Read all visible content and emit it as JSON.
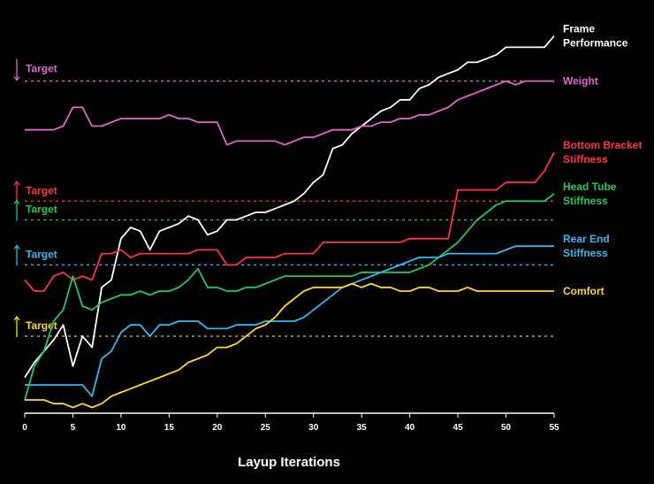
{
  "chart_data": {
    "type": "line",
    "title": "",
    "xlabel": "Layup Iterations",
    "ylabel": "",
    "xlim": [
      0,
      55
    ],
    "ylim": [
      0,
      100
    ],
    "x_ticks": [
      0,
      5,
      10,
      15,
      20,
      25,
      30,
      35,
      40,
      45,
      50,
      55
    ],
    "grid": false,
    "legend": "right (labels at line ends)",
    "series": [
      {
        "name": "Frame Performance",
        "label_lines": [
          "Frame",
          "Performance"
        ],
        "color": "#ffffff",
        "x": [
          0,
          1,
          2,
          3,
          4,
          5,
          6,
          7,
          8,
          9,
          10,
          11,
          12,
          13,
          14,
          15,
          16,
          17,
          18,
          19,
          20,
          21,
          22,
          23,
          24,
          25,
          26,
          27,
          28,
          29,
          30,
          31,
          32,
          33,
          34,
          35,
          36,
          37,
          38,
          39,
          40,
          41,
          42,
          43,
          44,
          45,
          46,
          47,
          48,
          49,
          50,
          51,
          52,
          53,
          54,
          55
        ],
        "values": [
          6,
          10,
          13,
          16,
          20,
          9,
          17,
          14,
          30,
          32,
          43,
          46,
          45,
          40,
          45,
          46,
          47,
          49,
          48,
          44,
          45,
          48,
          48,
          49,
          50,
          50,
          51,
          52,
          53,
          55,
          58,
          60,
          67,
          68,
          71,
          73,
          75,
          77,
          78,
          80,
          80,
          83,
          84,
          86,
          87,
          88,
          90,
          90,
          91,
          92,
          94,
          94,
          94,
          94,
          94,
          97
        ]
      },
      {
        "name": "Weight",
        "label_lines": [
          "Weight"
        ],
        "color": "#e066cc",
        "x": [
          0,
          1,
          2,
          3,
          4,
          5,
          6,
          7,
          8,
          9,
          10,
          11,
          12,
          13,
          14,
          15,
          16,
          17,
          18,
          19,
          20,
          21,
          22,
          23,
          24,
          25,
          26,
          27,
          28,
          29,
          30,
          31,
          32,
          33,
          34,
          35,
          36,
          37,
          38,
          39,
          40,
          41,
          42,
          43,
          44,
          45,
          46,
          47,
          48,
          49,
          50,
          51,
          52,
          53,
          54,
          55
        ],
        "values": [
          72,
          72,
          72,
          72,
          73,
          78,
          78,
          73,
          73,
          74,
          75,
          75,
          75,
          75,
          75,
          76,
          75,
          75,
          74,
          74,
          74,
          68,
          69,
          69,
          69,
          69,
          69,
          68,
          69,
          70,
          70,
          71,
          72,
          72,
          72,
          73,
          73,
          74,
          74,
          75,
          75,
          76,
          76,
          77,
          78,
          80,
          81,
          82,
          83,
          84,
          85,
          84,
          85,
          85,
          85,
          85
        ]
      },
      {
        "name": "Bottom Bracket Stiffness",
        "label_lines": [
          "Bottom Bracket",
          "Stiffness"
        ],
        "color": "#ff3340",
        "x": [
          0,
          1,
          2,
          3,
          4,
          5,
          6,
          7,
          8,
          9,
          10,
          11,
          12,
          13,
          14,
          15,
          16,
          17,
          18,
          19,
          20,
          21,
          22,
          23,
          24,
          25,
          26,
          27,
          28,
          29,
          30,
          31,
          32,
          33,
          34,
          35,
          36,
          37,
          38,
          39,
          40,
          41,
          42,
          43,
          44,
          45,
          46,
          47,
          48,
          49,
          50,
          51,
          52,
          53,
          54,
          55
        ],
        "values": [
          32,
          29,
          29,
          33,
          34,
          32,
          33,
          32,
          39,
          39,
          40,
          38,
          39,
          39,
          39,
          39,
          39,
          39,
          40,
          40,
          40,
          36,
          36,
          38,
          38,
          38,
          38,
          39,
          39,
          39,
          39,
          42,
          42,
          42,
          42,
          42,
          42,
          42,
          42,
          42,
          43,
          43,
          43,
          43,
          43,
          56,
          56,
          56,
          56,
          56,
          58,
          58,
          58,
          58,
          61,
          66
        ]
      },
      {
        "name": "Head Tube Stiffness",
        "label_lines": [
          "Head Tube",
          "Stiffness"
        ],
        "color": "#22c95a",
        "x": [
          0,
          1,
          2,
          3,
          4,
          5,
          6,
          7,
          8,
          9,
          10,
          11,
          12,
          13,
          14,
          15,
          16,
          17,
          18,
          19,
          20,
          21,
          22,
          23,
          24,
          25,
          26,
          27,
          28,
          29,
          30,
          31,
          32,
          33,
          34,
          35,
          36,
          37,
          38,
          39,
          40,
          41,
          42,
          43,
          44,
          45,
          46,
          47,
          48,
          49,
          50,
          51,
          52,
          53,
          54,
          55
        ],
        "values": [
          0,
          9,
          13,
          21,
          24,
          33,
          25,
          24,
          26,
          27,
          28,
          28,
          29,
          28,
          29,
          29,
          30,
          32,
          35,
          30,
          30,
          29,
          29,
          30,
          30,
          31,
          32,
          33,
          33,
          33,
          33,
          33,
          33,
          33,
          33,
          34,
          34,
          34,
          34,
          34,
          34,
          35,
          36,
          38,
          40,
          42,
          45,
          48,
          50,
          52,
          53,
          53,
          53,
          53,
          53,
          55
        ]
      },
      {
        "name": "Rear End Stiffness",
        "label_lines": [
          "Rear End",
          "Stiffness"
        ],
        "color": "#33b8f2",
        "x": [
          0,
          1,
          2,
          3,
          4,
          5,
          6,
          7,
          8,
          9,
          10,
          11,
          12,
          13,
          14,
          15,
          16,
          17,
          18,
          19,
          20,
          21,
          22,
          23,
          24,
          25,
          26,
          27,
          28,
          29,
          30,
          31,
          32,
          33,
          34,
          35,
          36,
          37,
          38,
          39,
          40,
          41,
          42,
          43,
          44,
          45,
          46,
          47,
          48,
          49,
          50,
          51,
          52,
          53,
          54,
          55
        ],
        "values": [
          4,
          4,
          4,
          4,
          4,
          4,
          4,
          1,
          11,
          13,
          18,
          20,
          20,
          17,
          20,
          20,
          21,
          21,
          21,
          19,
          19,
          19,
          20,
          20,
          20,
          21,
          21,
          21,
          21,
          22,
          24,
          26,
          28,
          30,
          31,
          32,
          33,
          34,
          35,
          36,
          37,
          38,
          38,
          38,
          39,
          39,
          39,
          39,
          39,
          39,
          40,
          41,
          41,
          41,
          41,
          41
        ]
      },
      {
        "name": "Comfort",
        "label_lines": [
          "Comfort"
        ],
        "color": "#ffd633",
        "x": [
          0,
          1,
          2,
          3,
          4,
          5,
          6,
          7,
          8,
          9,
          10,
          11,
          12,
          13,
          14,
          15,
          16,
          17,
          18,
          19,
          20,
          21,
          22,
          23,
          24,
          25,
          26,
          27,
          28,
          29,
          30,
          31,
          32,
          33,
          34,
          35,
          36,
          37,
          38,
          39,
          40,
          41,
          42,
          43,
          44,
          45,
          46,
          47,
          48,
          49,
          50,
          51,
          52,
          53,
          54,
          55
        ],
        "values": [
          0,
          0,
          0,
          -1,
          -1,
          -2,
          -1,
          -2,
          -1,
          1,
          2,
          3,
          4,
          5,
          6,
          7,
          8,
          10,
          11,
          12,
          14,
          14,
          15,
          17,
          19,
          20,
          22,
          25,
          27,
          29,
          30,
          30,
          30,
          30,
          31,
          30,
          31,
          30,
          30,
          29,
          29,
          30,
          30,
          29,
          29,
          29,
          30,
          29,
          29,
          29,
          29,
          29,
          29,
          29,
          29,
          29
        ]
      }
    ],
    "targets": [
      {
        "label": "Target",
        "arrow": "down",
        "value": 85,
        "color": "#e066cc"
      },
      {
        "label": "Target",
        "arrow": "up",
        "value": 53,
        "color": "#ff3340"
      },
      {
        "label": "Target",
        "arrow": "up",
        "value": 48,
        "color": "#22c95a"
      },
      {
        "label": "Target",
        "arrow": "up",
        "value": 36,
        "color": "#33b8f2"
      },
      {
        "label": "Target",
        "arrow": "up",
        "value": 17,
        "color": "#ffd633"
      }
    ]
  }
}
